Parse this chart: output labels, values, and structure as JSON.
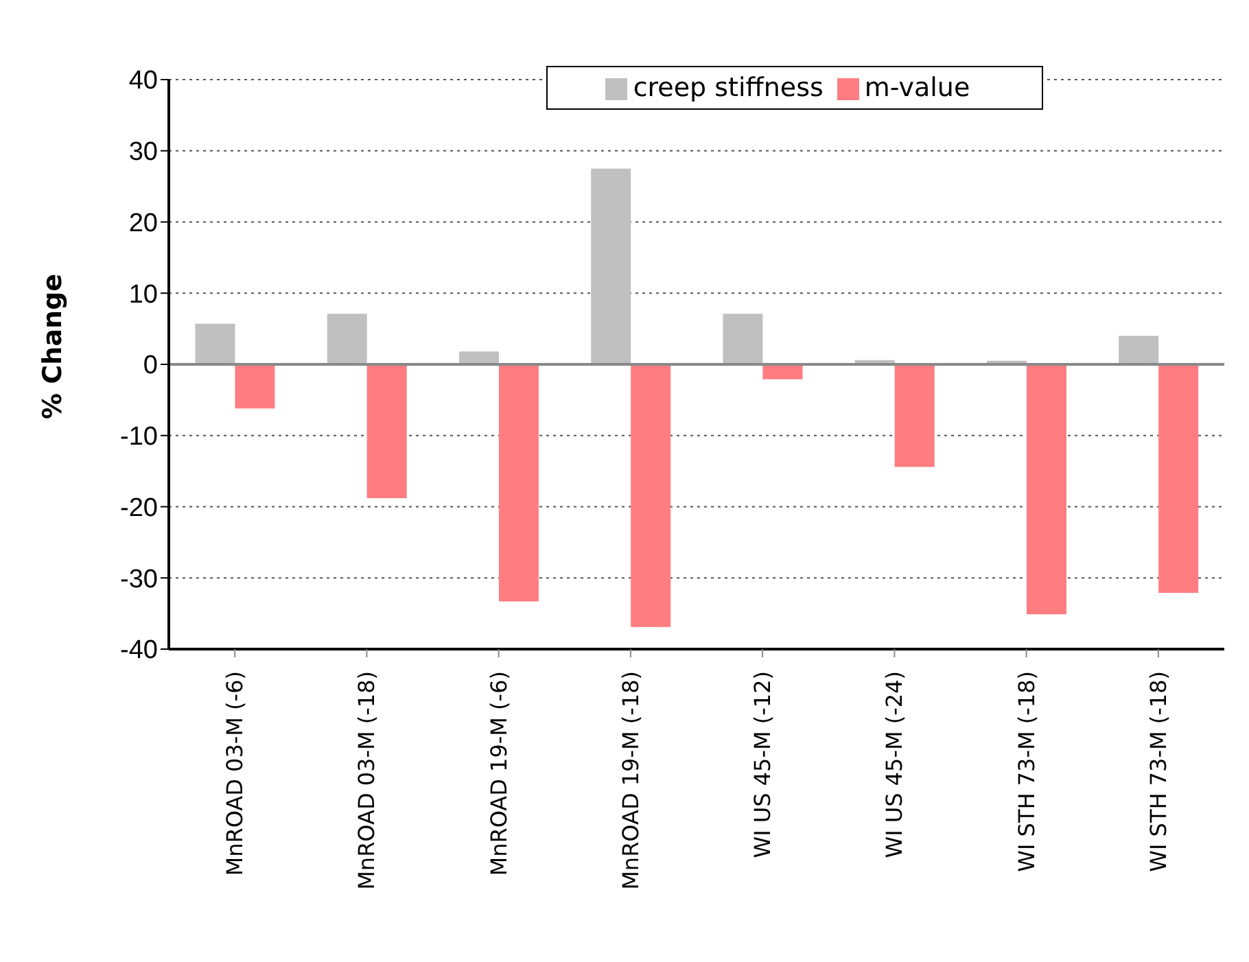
{
  "chart_data": {
    "type": "bar",
    "ylabel": "% Change",
    "categories": [
      "MnROAD 03-M (-6)",
      "MnROAD 03-M (-18)",
      "MnROAD 19-M (-6)",
      "MnROAD 19-M (-18)",
      "WI US 45-M (-12)",
      "WI US 45-M (-24)",
      "WI STH 73-M (-18)",
      "WI STH 73-M (-18)"
    ],
    "series": [
      {
        "name": "creep stiffness",
        "color": "#c0c0c0",
        "values": [
          5.7,
          7.1,
          1.8,
          27.5,
          7.1,
          0.6,
          0.5,
          4.0
        ]
      },
      {
        "name": "m-value",
        "color": "#ff7c80",
        "values": [
          -6.2,
          -18.8,
          -33.3,
          -36.9,
          -2.1,
          -14.4,
          -35.1,
          -32.1
        ]
      }
    ],
    "ylim": [
      -40,
      40
    ],
    "yticks": [
      -40,
      -30,
      -20,
      -10,
      0,
      10,
      20,
      30,
      40
    ],
    "grid": "y",
    "legend": "top"
  }
}
